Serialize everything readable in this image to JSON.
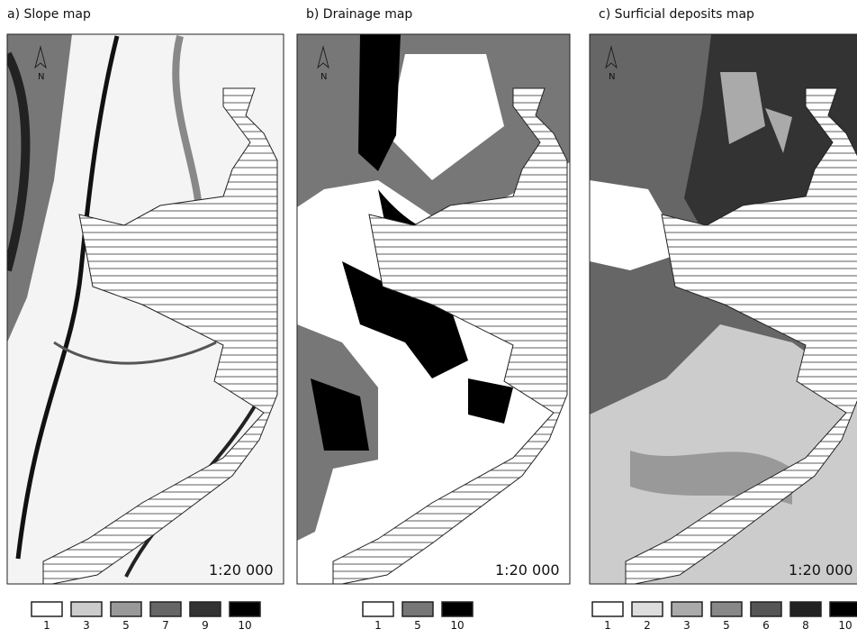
{
  "panels": [
    {
      "title": "a) Slope map",
      "north": "N",
      "scale": "1:20 000",
      "legend": [
        {
          "label": "1",
          "color": "#ffffff"
        },
        {
          "label": "3",
          "color": "#cccccc"
        },
        {
          "label": "5",
          "color": "#999999"
        },
        {
          "label": "7",
          "color": "#666666"
        },
        {
          "label": "9",
          "color": "#333333"
        },
        {
          "label": "10",
          "color": "#000000"
        }
      ]
    },
    {
      "title": "b) Drainage map",
      "north": "N",
      "scale": "1:20 000",
      "legend": [
        {
          "label": "1",
          "color": "#ffffff"
        },
        {
          "label": "5",
          "color": "#777777"
        },
        {
          "label": "10",
          "color": "#000000"
        }
      ]
    },
    {
      "title": "c) Surficial deposits map",
      "north": "N",
      "scale": "1:20 000",
      "legend": [
        {
          "label": "1",
          "color": "#ffffff"
        },
        {
          "label": "2",
          "color": "#dddddd"
        },
        {
          "label": "3",
          "color": "#aaaaaa"
        },
        {
          "label": "5",
          "color": "#888888"
        },
        {
          "label": "6",
          "color": "#555555"
        },
        {
          "label": "8",
          "color": "#222222"
        },
        {
          "label": "10",
          "color": "#000000"
        }
      ]
    }
  ]
}
